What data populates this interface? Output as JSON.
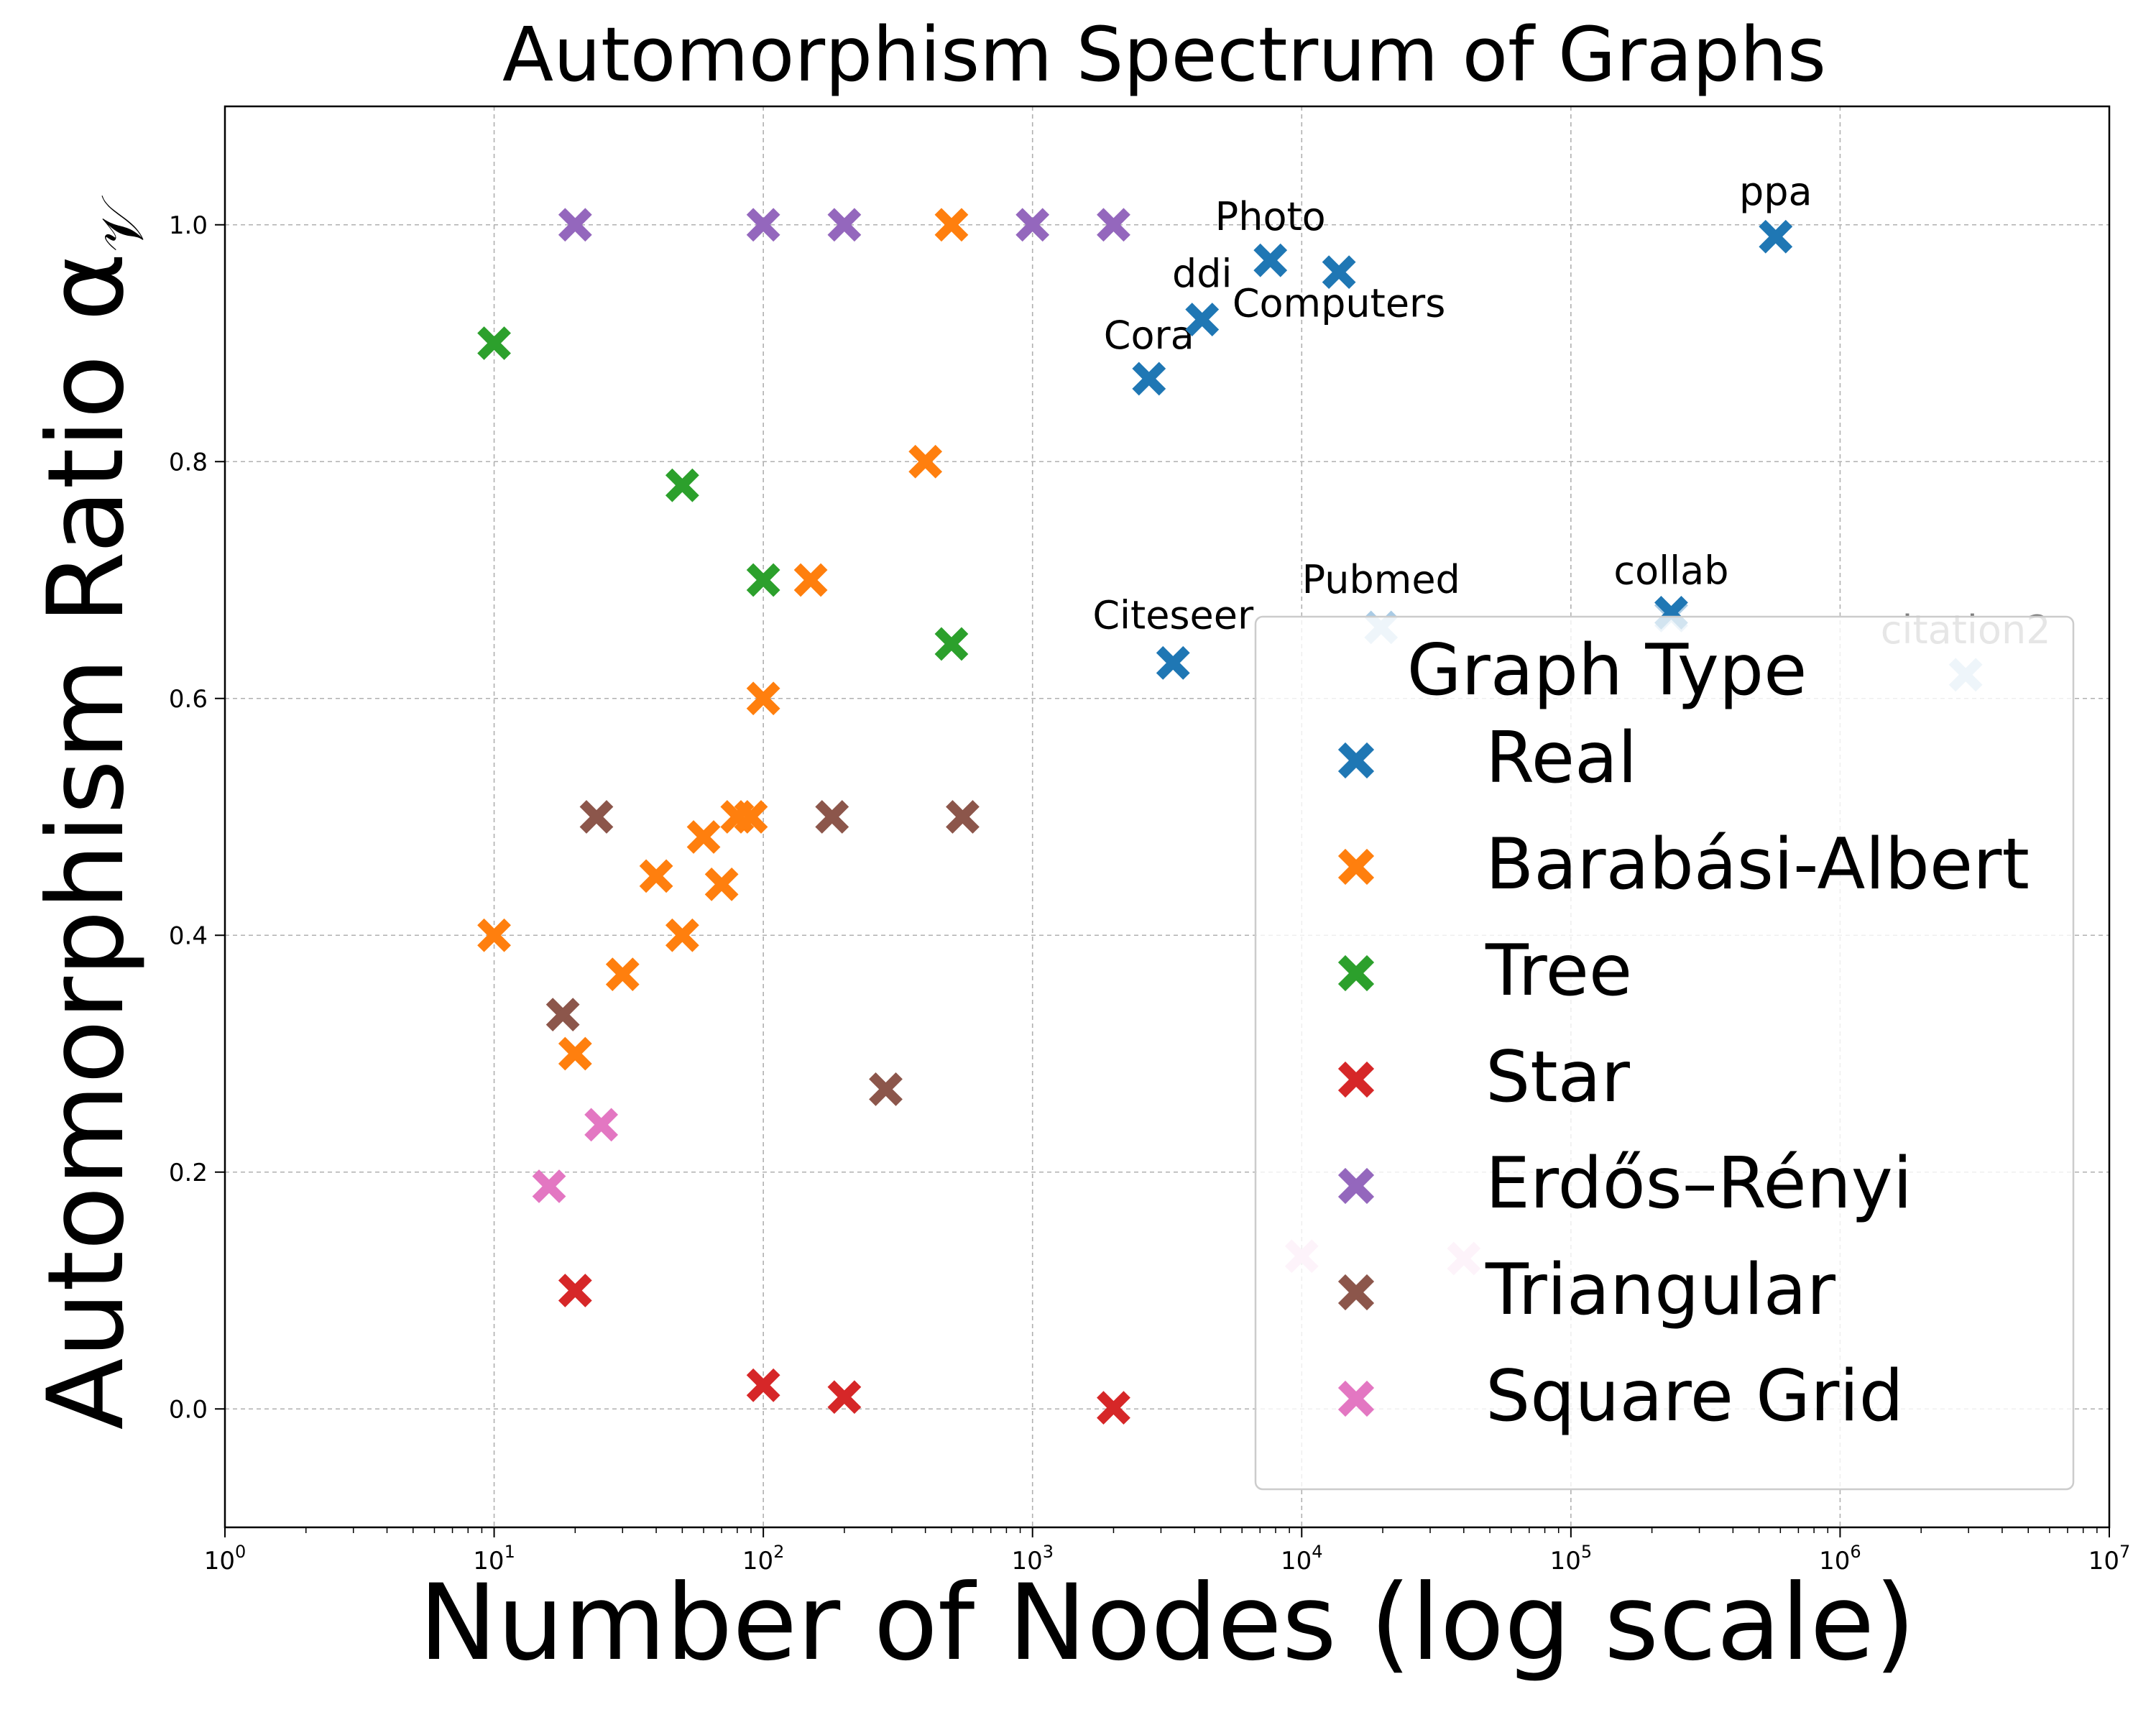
{
  "chart_data": {
    "type": "scatter",
    "title": "Automorphism Spectrum of Graphs",
    "xlabel": "Number of Nodes (log scale)",
    "ylabel": "Automorphism Ratio α",
    "ylabel_sub": "𝒱",
    "xscale": "log",
    "xlim": [
      1,
      10000000
    ],
    "ylim": [
      -0.1,
      1.1
    ],
    "x_ticks": [
      {
        "value": 1,
        "base": "10",
        "exp": "0"
      },
      {
        "value": 10,
        "base": "10",
        "exp": "1"
      },
      {
        "value": 100,
        "base": "10",
        "exp": "2"
      },
      {
        "value": 1000,
        "base": "10",
        "exp": "3"
      },
      {
        "value": 10000,
        "base": "10",
        "exp": "4"
      },
      {
        "value": 100000,
        "base": "10",
        "exp": "5"
      },
      {
        "value": 1000000,
        "base": "10",
        "exp": "6"
      },
      {
        "value": 10000000,
        "base": "10",
        "exp": "7"
      }
    ],
    "y_ticks": [
      {
        "value": 0.0,
        "label": "0.0"
      },
      {
        "value": 0.2,
        "label": "0.2"
      },
      {
        "value": 0.4,
        "label": "0.4"
      },
      {
        "value": 0.6,
        "label": "0.6"
      },
      {
        "value": 0.8,
        "label": "0.8"
      },
      {
        "value": 1.0,
        "label": "1.0"
      }
    ],
    "grid": true,
    "legend": {
      "title": "Graph Type",
      "placement": "lower-right"
    },
    "series": [
      {
        "name": "Real",
        "color": "#1f77b4",
        "points": [
          {
            "x": 2708,
            "y": 0.87,
            "label": "Cora"
          },
          {
            "x": 3327,
            "y": 0.63,
            "label": "Citeseer"
          },
          {
            "x": 4267,
            "y": 0.92,
            "label": "ddi"
          },
          {
            "x": 7650,
            "y": 0.97,
            "label": "Photo"
          },
          {
            "x": 13752,
            "y": 0.96,
            "label": "Computers"
          },
          {
            "x": 19717,
            "y": 0.66,
            "label": "Pubmed"
          },
          {
            "x": 235868,
            "y": 0.67,
            "label": "collab"
          },
          {
            "x": 576289,
            "y": 0.99,
            "label": "ppa"
          },
          {
            "x": 2927963,
            "y": 0.62,
            "label": "citation2"
          }
        ]
      },
      {
        "name": "Barabási-Albert",
        "color": "#ff7f0e",
        "points": [
          {
            "x": 10,
            "y": 0.4
          },
          {
            "x": 20,
            "y": 0.3
          },
          {
            "x": 30,
            "y": 0.367
          },
          {
            "x": 40,
            "y": 0.45
          },
          {
            "x": 50,
            "y": 0.4
          },
          {
            "x": 60,
            "y": 0.483
          },
          {
            "x": 70,
            "y": 0.443
          },
          {
            "x": 80,
            "y": 0.5
          },
          {
            "x": 90,
            "y": 0.5
          },
          {
            "x": 100,
            "y": 0.6
          },
          {
            "x": 150,
            "y": 0.7
          },
          {
            "x": 400,
            "y": 0.8
          },
          {
            "x": 500,
            "y": 1.0
          }
        ]
      },
      {
        "name": "Tree",
        "color": "#2ca02c",
        "points": [
          {
            "x": 10,
            "y": 0.9
          },
          {
            "x": 50,
            "y": 0.78
          },
          {
            "x": 100,
            "y": 0.7
          },
          {
            "x": 500,
            "y": 0.646
          }
        ]
      },
      {
        "name": "Star",
        "color": "#d62728",
        "points": [
          {
            "x": 20,
            "y": 0.1
          },
          {
            "x": 100,
            "y": 0.02
          },
          {
            "x": 200,
            "y": 0.01
          },
          {
            "x": 2000,
            "y": 0.001
          }
        ]
      },
      {
        "name": "Erdős–Rényi",
        "color": "#9467bd",
        "points": [
          {
            "x": 20,
            "y": 1.0
          },
          {
            "x": 100,
            "y": 1.0
          },
          {
            "x": 200,
            "y": 1.0
          },
          {
            "x": 1000,
            "y": 1.0
          },
          {
            "x": 2000,
            "y": 1.0
          }
        ]
      },
      {
        "name": "Triangular",
        "color": "#8c564b",
        "points": [
          {
            "x": 18,
            "y": 0.333
          },
          {
            "x": 24,
            "y": 0.5
          },
          {
            "x": 180,
            "y": 0.5
          },
          {
            "x": 285,
            "y": 0.27
          },
          {
            "x": 550,
            "y": 0.5
          }
        ]
      },
      {
        "name": "Square Grid",
        "color": "#e377c2",
        "points": [
          {
            "x": 16,
            "y": 0.188
          },
          {
            "x": 25,
            "y": 0.24
          },
          {
            "x": 10000,
            "y": 0.129
          },
          {
            "x": 40000,
            "y": 0.127
          }
        ]
      }
    ]
  }
}
